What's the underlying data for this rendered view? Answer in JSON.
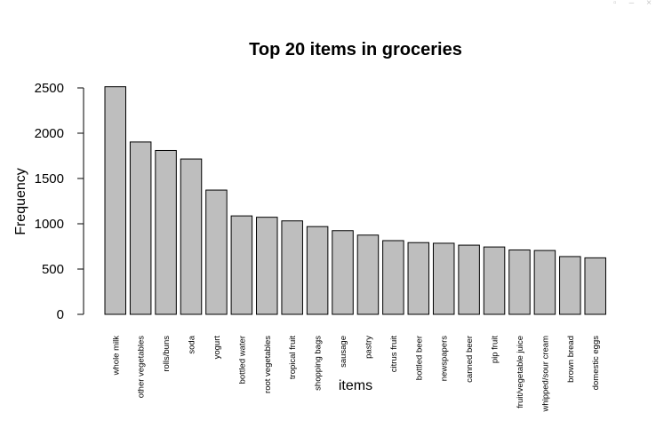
{
  "window": {
    "controls": [
      {
        "name": "restore-icon",
        "glyph": "▫"
      },
      {
        "name": "minimize-icon",
        "glyph": "–"
      },
      {
        "name": "close-icon",
        "glyph": "×"
      }
    ]
  },
  "chart_data": {
    "type": "bar",
    "title": "Top 20 items in groceries",
    "xlabel": "items",
    "ylabel": "Frequency",
    "ylim": [
      0,
      2500
    ],
    "yticks": [
      0,
      500,
      1000,
      1500,
      2000,
      2500
    ],
    "grid": false,
    "legend": "none",
    "bar_color": "#bebebe",
    "border_color": "#000000",
    "categories": [
      "whole milk",
      "other vegetables",
      "rolls/buns",
      "soda",
      "yogurt",
      "bottled water",
      "root vegetables",
      "tropical fruit",
      "shopping bags",
      "sausage",
      "pastry",
      "citrus fruit",
      "bottled beer",
      "newspapers",
      "canned beer",
      "pip fruit",
      "fruit/vegetable juice",
      "whipped/sour cream",
      "brown bread",
      "domestic eggs"
    ],
    "values": [
      2513,
      1903,
      1809,
      1715,
      1372,
      1087,
      1072,
      1032,
      969,
      924,
      875,
      814,
      792,
      785,
      764,
      744,
      711,
      705,
      638,
      624
    ]
  }
}
